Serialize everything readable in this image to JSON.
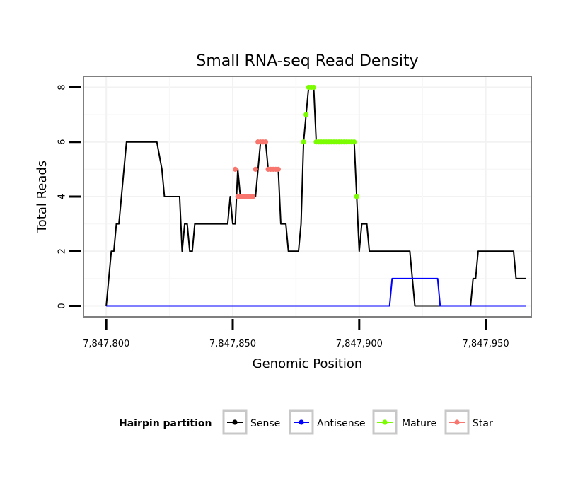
{
  "chart_data": {
    "type": "line",
    "title": "Small RNA-seq Read Density",
    "xlabel": "Genomic Position",
    "ylabel": "Total Reads",
    "xlim": [
      7847791,
      7847968
    ],
    "ylim": [
      -0.4,
      8.4
    ],
    "x_ticks": [
      7847800,
      7847850,
      7847900,
      7847950
    ],
    "x_tick_labels": [
      "7,847,800",
      "7,847,850",
      "7,847,900",
      "7,847,950"
    ],
    "y_ticks": [
      0,
      2,
      4,
      6,
      8
    ],
    "y_tick_labels": [
      "0",
      "2",
      "4",
      "6",
      "8"
    ],
    "grid": true,
    "legend": {
      "title": "Hairpin partition",
      "position": "bottom",
      "entries": [
        {
          "name": "Sense",
          "color": "#000000"
        },
        {
          "name": "Antisense",
          "color": "#0000ff"
        },
        {
          "name": "Mature",
          "color": "#7cfc00"
        },
        {
          "name": "Star",
          "color": "#f8766d"
        }
      ]
    },
    "series": [
      {
        "name": "Sense",
        "color": "#000000",
        "x": [
          7847800,
          7847801,
          7847802,
          7847803,
          7847804,
          7847805,
          7847808,
          7847809,
          7847820,
          7847822,
          7847823,
          7847829,
          7847830,
          7847831,
          7847832,
          7847833,
          7847834,
          7847835,
          7847836,
          7847848,
          7847849,
          7847850,
          7847851,
          7847852,
          7847853,
          7847858,
          7847859,
          7847860,
          7847861,
          7847862,
          7847863,
          7847864,
          7847865,
          7847866,
          7847867,
          7847868,
          7847869,
          7847870,
          7847871,
          7847872,
          7847873,
          7847876,
          7847877,
          7847878,
          7847879,
          7847880,
          7847881,
          7847882,
          7847883,
          7847884,
          7847898,
          7847899,
          7847900,
          7847901,
          7847902,
          7847903,
          7847904,
          7847920,
          7847922,
          7847923,
          7847943,
          7847944,
          7847945,
          7847946,
          7847947,
          7847961,
          7847962,
          7847966
        ],
        "values": [
          0,
          1,
          2,
          2,
          3,
          3,
          6,
          6,
          6,
          5,
          4,
          4,
          2,
          3,
          3,
          2,
          2,
          3,
          3,
          3,
          4,
          3,
          3,
          5,
          4,
          4,
          4,
          5,
          6,
          6,
          6,
          5,
          5,
          5,
          5,
          5,
          3,
          3,
          3,
          2,
          2,
          2,
          3,
          6,
          7,
          8,
          8,
          8,
          6,
          6,
          6,
          4,
          2,
          3,
          3,
          3,
          2,
          2,
          0,
          0,
          0,
          0,
          1,
          1,
          2,
          2,
          1,
          1
        ]
      },
      {
        "name": "Antisense",
        "color": "#0000ff",
        "x": [
          7847800,
          7847912,
          7847913,
          7847919,
          7847920,
          7847931,
          7847932,
          7847966
        ],
        "values": [
          0,
          0,
          1,
          1,
          1,
          1,
          0,
          0
        ]
      },
      {
        "name": "Mature",
        "color": "#7cfc00",
        "x": [
          7847878,
          7847879,
          7847880,
          7847881,
          7847882,
          7847883,
          7847884,
          7847885,
          7847886,
          7847887,
          7847888,
          7847889,
          7847890,
          7847891,
          7847892,
          7847893,
          7847894,
          7847895,
          7847896,
          7847897,
          7847898,
          7847899
        ],
        "values": [
          6,
          7,
          8,
          8,
          8,
          6,
          6,
          6,
          6,
          6,
          6,
          6,
          6,
          6,
          6,
          6,
          6,
          6,
          6,
          6,
          6,
          4
        ]
      },
      {
        "name": "Star",
        "color": "#f8766d",
        "x": [
          7847851,
          7847852,
          7847853,
          7847854,
          7847855,
          7847856,
          7847857,
          7847858,
          7847859,
          7847860,
          7847861,
          7847862,
          7847863,
          7847864,
          7847865,
          7847866,
          7847867,
          7847868
        ],
        "values": [
          5,
          4,
          4,
          4,
          4,
          4,
          4,
          4,
          5,
          6,
          6,
          6,
          6,
          5,
          5,
          5,
          5,
          5
        ]
      }
    ]
  }
}
